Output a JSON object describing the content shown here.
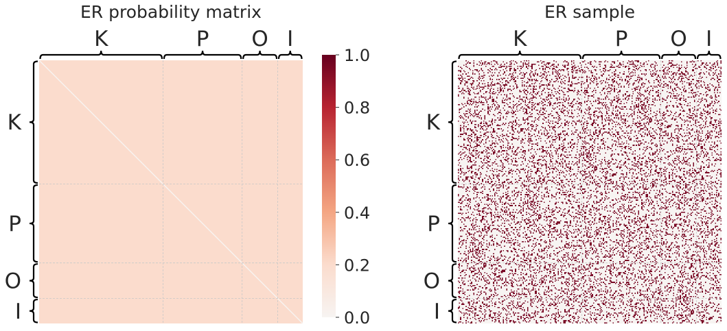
{
  "chart_data": [
    {
      "type": "heatmap",
      "title": "ER probability matrix",
      "blocks": [
        {
          "label": "K",
          "size": 0.47
        },
        {
          "label": "P",
          "size": 0.3
        },
        {
          "label": "O",
          "size": 0.135
        },
        {
          "label": "I",
          "size": 0.095
        }
      ],
      "cell_value": 0.2,
      "diagonal_value": 0.0,
      "colorbar": {
        "min": 0.0,
        "max": 1.0,
        "ticks": [
          "0.0",
          "0.2",
          "0.4",
          "0.6",
          "0.8",
          "1.0"
        ],
        "colors": [
          "#f7f4f2",
          "#fbdccd",
          "#f4a683",
          "#dc6b59",
          "#b72331",
          "#67001f"
        ]
      },
      "grid": true,
      "color_filled": "#fbdccd",
      "color_diagonal": "#f7f4f2"
    },
    {
      "type": "heatmap",
      "title": "ER sample",
      "blocks": [
        {
          "label": "K",
          "size": 0.47
        },
        {
          "label": "P",
          "size": 0.3
        },
        {
          "label": "O",
          "size": 0.135
        },
        {
          "label": "I",
          "size": 0.095
        }
      ],
      "edge_density": 0.2,
      "binary": true,
      "grid": true,
      "color_edge": "#7a0a26",
      "color_empty": "#f7f4f2"
    }
  ]
}
